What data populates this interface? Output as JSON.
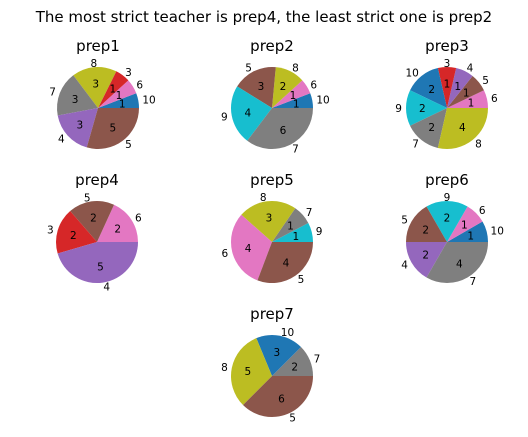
{
  "chart_data": {
    "type": "pie",
    "title": "The most strict teacher is prep4, the least strict one is prep2",
    "grade_colors": {
      "1": "#e67ec8",
      "3": "#d62728",
      "4": "#9467bd",
      "5": "#8c564b",
      "6": "#e377c2",
      "7": "#7f7f7f",
      "8": "#bcbd22",
      "9": "#17becf",
      "10": "#1f77b4"
    },
    "charts": [
      {
        "title": "prep1",
        "slices": [
          {
            "label": "10",
            "value": 1
          },
          {
            "label": "6",
            "value": 1
          },
          {
            "label": "3",
            "value": 1
          },
          {
            "label": "8",
            "value": 3
          },
          {
            "label": "7",
            "value": 3
          },
          {
            "label": "4",
            "value": 3
          },
          {
            "label": "5",
            "value": 5
          }
        ]
      },
      {
        "title": "prep2",
        "slices": [
          {
            "label": "10",
            "value": 1
          },
          {
            "label": "6",
            "value": 1
          },
          {
            "label": "8",
            "value": 2
          },
          {
            "label": "5",
            "value": 3
          },
          {
            "label": "9",
            "value": 4
          },
          {
            "label": "7",
            "value": 6
          }
        ]
      },
      {
        "title": "prep3",
        "slices": [
          {
            "label": "6",
            "value": 1
          },
          {
            "label": "5",
            "value": 1
          },
          {
            "label": "4",
            "value": 1
          },
          {
            "label": "3",
            "value": 1
          },
          {
            "label": "10",
            "value": 2
          },
          {
            "label": "9",
            "value": 2
          },
          {
            "label": "7",
            "value": 2
          },
          {
            "label": "8",
            "value": 4
          }
        ]
      },
      {
        "title": "prep4",
        "slices": [
          {
            "label": "6",
            "value": 2
          },
          {
            "label": "5",
            "value": 2
          },
          {
            "label": "3",
            "value": 2
          },
          {
            "label": "4",
            "value": 5
          }
        ]
      },
      {
        "title": "prep5",
        "slices": [
          {
            "label": "9",
            "value": 1
          },
          {
            "label": "7",
            "value": 1
          },
          {
            "label": "8",
            "value": 3
          },
          {
            "label": "6",
            "value": 4
          },
          {
            "label": "5",
            "value": 4
          }
        ]
      },
      {
        "title": "prep6",
        "slices": [
          {
            "label": "10",
            "value": 1
          },
          {
            "label": "6",
            "value": 1
          },
          {
            "label": "9",
            "value": 2
          },
          {
            "label": "5",
            "value": 2
          },
          {
            "label": "4",
            "value": 2
          },
          {
            "label": "7",
            "value": 4
          }
        ]
      },
      {
        "title": "prep7",
        "slices": [
          {
            "label": "7",
            "value": 2
          },
          {
            "label": "10",
            "value": 3
          },
          {
            "label": "8",
            "value": 5
          },
          {
            "label": "5",
            "value": 6
          }
        ]
      }
    ]
  }
}
